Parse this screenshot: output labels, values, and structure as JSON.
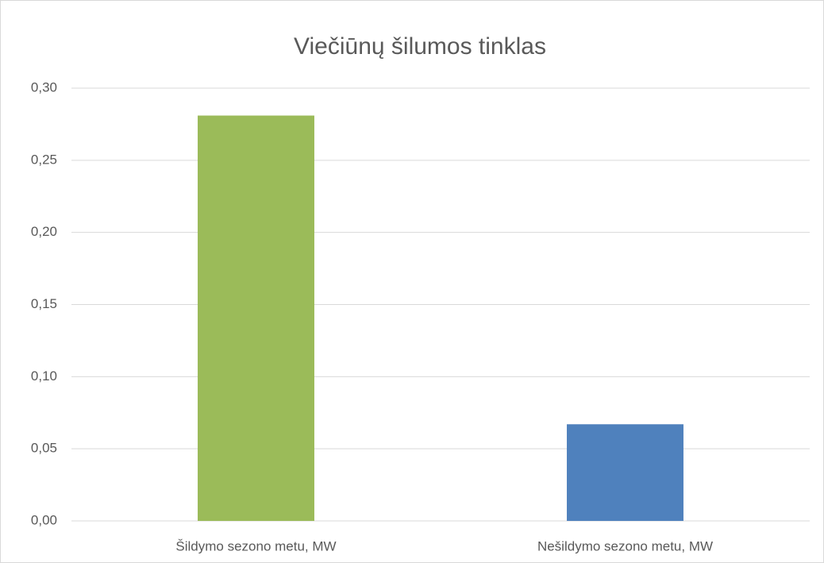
{
  "chart_data": {
    "type": "bar",
    "title": "Viečiūnų šilumos tinklas",
    "categories": [
      "Šildymo sezono metu, MW",
      "Nešildymo sezono metu, MW"
    ],
    "values": [
      0.281,
      0.067
    ],
    "colors": [
      "#9bbb59",
      "#4f81bd"
    ],
    "ylim": [
      0,
      0.3
    ],
    "yticks": [
      {
        "value": 0,
        "label": "0,00"
      },
      {
        "value": 0.05,
        "label": "0,05"
      },
      {
        "value": 0.1,
        "label": "0,10"
      },
      {
        "value": 0.15,
        "label": "0,15"
      },
      {
        "value": 0.2,
        "label": "0,20"
      },
      {
        "value": 0.25,
        "label": "0,25"
      },
      {
        "value": 0.3,
        "label": "0,30"
      }
    ],
    "grid": true
  }
}
